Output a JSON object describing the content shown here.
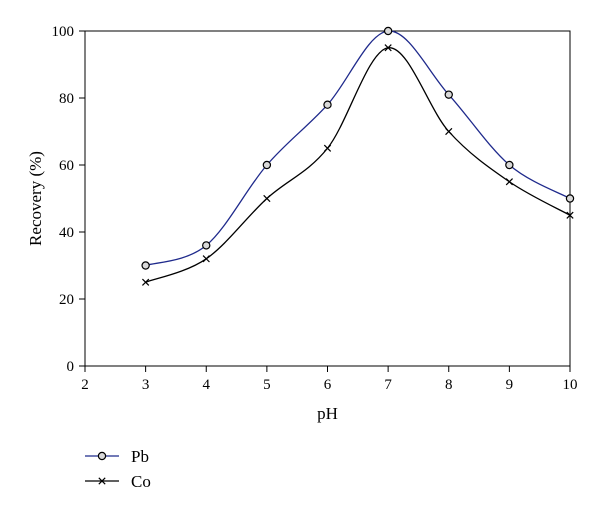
{
  "chart_data": {
    "type": "line",
    "xlabel": "pH",
    "ylabel": "Recovery (%)",
    "xlim": [
      2,
      10
    ],
    "ylim": [
      0,
      100
    ],
    "x_ticks": [
      "2",
      "3",
      "4",
      "5",
      "6",
      "7",
      "8",
      "9",
      "10"
    ],
    "y_ticks": [
      "0",
      "20",
      "40",
      "60",
      "80",
      "100"
    ],
    "grid": false,
    "legend_position": "bottom-left",
    "series": [
      {
        "name": "Pb",
        "marker": "circle",
        "color": "#1f2a8c",
        "x": [
          3,
          4,
          5,
          6,
          7,
          8,
          9,
          10
        ],
        "values": [
          30,
          36,
          60,
          78,
          100,
          81,
          60,
          50
        ]
      },
      {
        "name": "Co",
        "marker": "x",
        "color": "#000000",
        "x": [
          3,
          4,
          5,
          6,
          7,
          8,
          9,
          10
        ],
        "values": [
          25,
          32,
          50,
          65,
          95,
          70,
          55,
          45
        ]
      }
    ]
  }
}
